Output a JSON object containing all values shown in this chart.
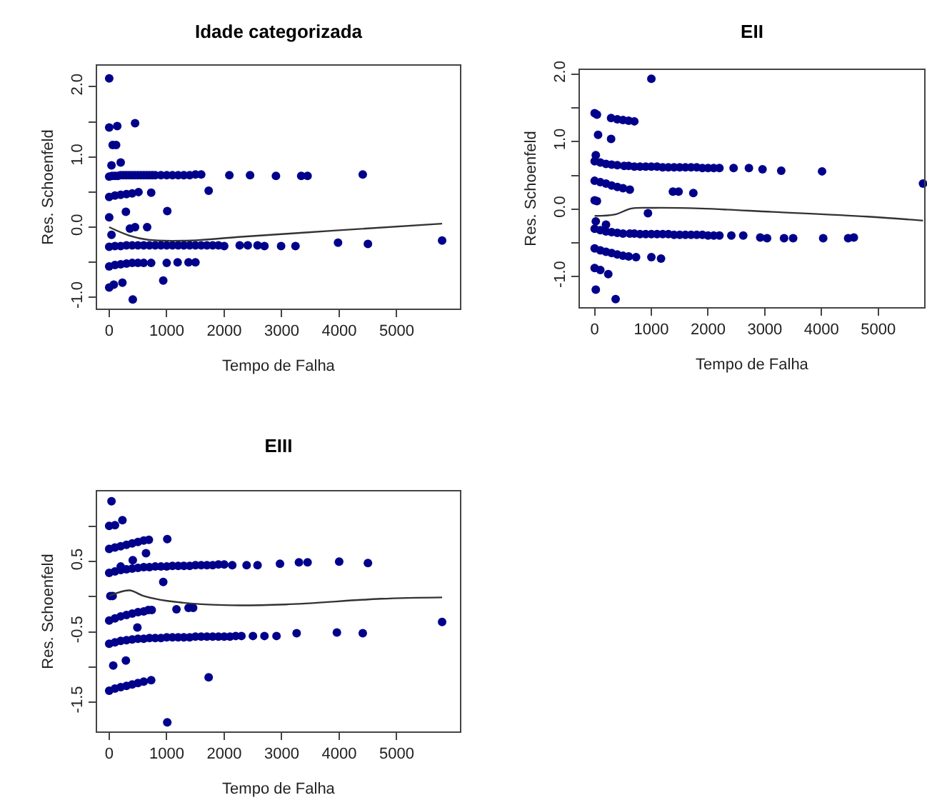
{
  "chart_data": [
    {
      "type": "scatter",
      "title": "Idade categorizada",
      "xlabel": "Tempo de Falha",
      "ylabel": "Res. Schoenfeld",
      "xlim": [
        -210,
        6100
      ],
      "ylim": [
        -1.16,
        2.3
      ],
      "xticks": [
        0,
        1000,
        2000,
        3000,
        4000,
        5000
      ],
      "yticks": [
        {
          "value": -1,
          "label": "-1.0"
        },
        {
          "value": -0.5,
          "label": null
        },
        {
          "value": 0,
          "label": "0.0"
        },
        {
          "value": 0.5,
          "label": null
        },
        {
          "value": 1,
          "label": "1.0"
        },
        {
          "value": 1.5,
          "label": null
        },
        {
          "value": 2,
          "label": "2.0"
        }
      ],
      "grid": false,
      "series": [
        {
          "marker": "circle",
          "color": "#00008b",
          "x": [
            0,
            0,
            140,
            60,
            120,
            450,
            40,
            200,
            0,
            50,
            100,
            150,
            200,
            250,
            300,
            350,
            400,
            450,
            500,
            550,
            600,
            650,
            700,
            750,
            800,
            900,
            1000,
            1100,
            1200,
            1300,
            1400,
            1500,
            1600,
            2090,
            2450,
            2900,
            3340,
            3450,
            4410,
            1730,
            730,
            0,
            100,
            200,
            300,
            400,
            510,
            0,
            290,
            1010,
            450,
            660,
            360,
            40,
            0,
            100,
            200,
            300,
            400,
            500,
            600,
            700,
            800,
            900,
            1000,
            1100,
            1200,
            1300,
            1400,
            1500,
            1600,
            1700,
            1800,
            1900,
            2000,
            2270,
            2410,
            2580,
            2700,
            2990,
            3240,
            3980,
            4500,
            5790,
            0,
            100,
            200,
            300,
            400,
            500,
            600,
            730,
            1000,
            1190,
            1380,
            1500,
            940,
            230,
            0,
            80,
            410
          ],
          "values": [
            2.12,
            1.42,
            1.44,
            1.17,
            1.17,
            1.48,
            0.88,
            0.92,
            0.72,
            0.73,
            0.73,
            0.73,
            0.74,
            0.74,
            0.74,
            0.74,
            0.74,
            0.74,
            0.74,
            0.74,
            0.74,
            0.74,
            0.74,
            0.74,
            0.74,
            0.74,
            0.74,
            0.74,
            0.74,
            0.74,
            0.74,
            0.75,
            0.75,
            0.74,
            0.74,
            0.73,
            0.73,
            0.73,
            0.75,
            0.52,
            0.49,
            0.43,
            0.45,
            0.46,
            0.47,
            0.48,
            0.5,
            0.14,
            0.22,
            0.23,
            0,
            0,
            -0.02,
            -0.11,
            -0.28,
            -0.27,
            -0.27,
            -0.26,
            -0.26,
            -0.26,
            -0.26,
            -0.26,
            -0.26,
            -0.26,
            -0.26,
            -0.26,
            -0.26,
            -0.26,
            -0.26,
            -0.26,
            -0.26,
            -0.26,
            -0.26,
            -0.26,
            -0.27,
            -0.26,
            -0.26,
            -0.26,
            -0.27,
            -0.27,
            -0.27,
            -0.22,
            -0.24,
            -0.19,
            -0.56,
            -0.54,
            -0.53,
            -0.52,
            -0.51,
            -0.51,
            -0.51,
            -0.51,
            -0.51,
            -0.5,
            -0.5,
            -0.5,
            -0.76,
            -0.79,
            -0.86,
            -0.82,
            -1.03
          ]
        },
        {
          "type": "line",
          "marker": "none",
          "color": "#333333",
          "x": [
            0,
            350,
            680,
            1420,
            2250,
            3900,
            5790
          ],
          "values": [
            0,
            -0.12,
            -0.18,
            -0.19,
            -0.14,
            -0.05,
            0.05
          ]
        }
      ]
    },
    {
      "type": "scatter",
      "title": "EII",
      "xlabel": "Tempo de Falha",
      "ylabel": "Res. Schoenfeld",
      "xlim": [
        -260,
        5810
      ],
      "ylim": [
        -1.45,
        2.06
      ],
      "xticks": [
        0,
        1000,
        2000,
        3000,
        4000,
        5000
      ],
      "yticks": [
        {
          "value": -1,
          "label": "-1.0"
        },
        {
          "value": -0.5,
          "label": null
        },
        {
          "value": 0,
          "label": "0.0"
        },
        {
          "value": 0.5,
          "label": null
        },
        {
          "value": 1,
          "label": "1.0"
        },
        {
          "value": 1.5,
          "label": null
        },
        {
          "value": 2,
          "label": "2.0"
        }
      ],
      "grid": false,
      "series": [
        {
          "marker": "circle",
          "color": "#00008b",
          "x": [
            1000,
            0,
            40,
            290,
            400,
            500,
            600,
            700,
            60,
            290,
            20,
            0,
            100,
            200,
            300,
            400,
            520,
            600,
            700,
            800,
            900,
            1000,
            1100,
            1200,
            1300,
            1400,
            1500,
            1600,
            1700,
            1800,
            1900,
            2000,
            2100,
            2200,
            2450,
            2720,
            2960,
            3290,
            4010,
            5790,
            0,
            100,
            200,
            300,
            400,
            500,
            620,
            1380,
            1480,
            1740,
            0,
            40,
            940,
            20,
            200,
            0,
            100,
            200,
            300,
            400,
            500,
            620,
            700,
            800,
            900,
            1000,
            1100,
            1200,
            1300,
            1400,
            1500,
            1600,
            1700,
            1800,
            1900,
            2000,
            2100,
            2200,
            2410,
            2620,
            2920,
            3040,
            3340,
            3500,
            4030,
            4470,
            4570,
            0,
            100,
            200,
            300,
            400,
            500,
            600,
            730,
            1000,
            1170,
            0,
            100,
            240,
            20,
            370
          ],
          "values": [
            1.93,
            1.42,
            1.4,
            1.35,
            1.33,
            1.32,
            1.31,
            1.3,
            1.1,
            1.04,
            0.8,
            0.71,
            0.69,
            0.67,
            0.66,
            0.65,
            0.64,
            0.64,
            0.63,
            0.63,
            0.63,
            0.63,
            0.63,
            0.62,
            0.62,
            0.62,
            0.62,
            0.62,
            0.62,
            0.62,
            0.61,
            0.61,
            0.61,
            0.61,
            0.61,
            0.61,
            0.59,
            0.57,
            0.56,
            0.38,
            0.42,
            0.4,
            0.38,
            0.35,
            0.33,
            0.31,
            0.29,
            0.26,
            0.26,
            0.24,
            0.13,
            0.12,
            -0.06,
            -0.18,
            -0.23,
            -0.29,
            -0.31,
            -0.33,
            -0.34,
            -0.35,
            -0.36,
            -0.36,
            -0.36,
            -0.37,
            -0.37,
            -0.37,
            -0.37,
            -0.37,
            -0.37,
            -0.38,
            -0.38,
            -0.38,
            -0.38,
            -0.38,
            -0.38,
            -0.39,
            -0.39,
            -0.39,
            -0.39,
            -0.39,
            -0.42,
            -0.43,
            -0.43,
            -0.43,
            -0.43,
            -0.43,
            -0.42,
            -0.58,
            -0.61,
            -0.63,
            -0.65,
            -0.67,
            -0.69,
            -0.7,
            -0.71,
            -0.71,
            -0.73,
            -0.87,
            -0.9,
            -0.96,
            -1.19,
            -1.33
          ]
        },
        {
          "type": "line",
          "marker": "none",
          "color": "#333333",
          "x": [
            0,
            350,
            650,
            1030,
            1870,
            3130,
            4810,
            5790
          ],
          "values": [
            -0.1,
            -0.08,
            0.01,
            0.02,
            0.01,
            -0.04,
            -0.11,
            -0.17
          ]
        }
      ]
    },
    {
      "type": "scatter",
      "title": "EIII",
      "xlabel": "Tempo de Falha",
      "ylabel": "Res. Schoenfeld",
      "xlim": [
        -210,
        6100
      ],
      "ylim": [
        -1.92,
        1.5
      ],
      "xticks": [
        0,
        1000,
        2000,
        3000,
        4000,
        5000
      ],
      "yticks": [
        {
          "value": -1.5,
          "label": "-1.5"
        },
        {
          "value": -1,
          "label": null
        },
        {
          "value": -0.5,
          "label": "-0.5"
        },
        {
          "value": 0,
          "label": null
        },
        {
          "value": 0.5,
          "label": "0.5"
        },
        {
          "value": 1,
          "label": null
        }
      ],
      "grid": false,
      "series": [
        {
          "marker": "circle",
          "color": "#00008b",
          "x": [
            40,
            0,
            100,
            230,
            0,
            100,
            200,
            300,
            400,
            500,
            600,
            690,
            1010,
            640,
            410,
            0,
            100,
            200,
            300,
            400,
            500,
            600,
            700,
            800,
            900,
            1000,
            1100,
            1200,
            1300,
            1400,
            1500,
            1600,
            1700,
            1800,
            1900,
            2000,
            2140,
            2390,
            2580,
            2970,
            3300,
            3450,
            4000,
            4500,
            200,
            940,
            20,
            60,
            0,
            100,
            200,
            300,
            400,
            500,
            600,
            680,
            740,
            1170,
            1380,
            1460,
            490,
            5790,
            0,
            100,
            200,
            300,
            400,
            500,
            600,
            700,
            800,
            900,
            1000,
            1100,
            1200,
            1300,
            1400,
            1500,
            1600,
            1700,
            1800,
            1900,
            2000,
            2100,
            2200,
            2300,
            2500,
            2700,
            2910,
            3260,
            3960,
            4410,
            70,
            290,
            1730,
            0,
            100,
            200,
            300,
            400,
            500,
            600,
            730,
            1010
          ],
          "values": [
            1.36,
            1.01,
            1.02,
            1.09,
            0.68,
            0.7,
            0.72,
            0.74,
            0.76,
            0.78,
            0.8,
            0.81,
            0.82,
            0.62,
            0.52,
            0.34,
            0.36,
            0.38,
            0.39,
            0.4,
            0.41,
            0.42,
            0.42,
            0.43,
            0.43,
            0.43,
            0.44,
            0.44,
            0.44,
            0.44,
            0.45,
            0.45,
            0.45,
            0.45,
            0.46,
            0.46,
            0.45,
            0.45,
            0.45,
            0.47,
            0.49,
            0.49,
            0.5,
            0.48,
            0.43,
            0.21,
            0.01,
            0.01,
            -0.34,
            -0.31,
            -0.28,
            -0.26,
            -0.24,
            -0.22,
            -0.21,
            -0.19,
            -0.19,
            -0.18,
            -0.16,
            -0.16,
            -0.44,
            -0.36,
            -0.67,
            -0.65,
            -0.63,
            -0.62,
            -0.61,
            -0.6,
            -0.6,
            -0.59,
            -0.59,
            -0.59,
            -0.58,
            -0.58,
            -0.58,
            -0.58,
            -0.58,
            -0.57,
            -0.57,
            -0.57,
            -0.57,
            -0.57,
            -0.57,
            -0.57,
            -0.56,
            -0.56,
            -0.56,
            -0.56,
            -0.56,
            -0.52,
            -0.51,
            -0.52,
            -0.98,
            -0.91,
            -1.15,
            -1.34,
            -1.31,
            -1.29,
            -1.27,
            -1.25,
            -1.23,
            -1.21,
            -1.19,
            -1.79
          ]
        },
        {
          "type": "line",
          "marker": "none",
          "color": "#333333",
          "x": [
            0,
            350,
            600,
            1010,
            2000,
            3070,
            4730,
            5790
          ],
          "values": [
            0.01,
            0.09,
            0.01,
            -0.06,
            -0.12,
            -0.11,
            -0.03,
            -0.01
          ]
        }
      ]
    }
  ]
}
